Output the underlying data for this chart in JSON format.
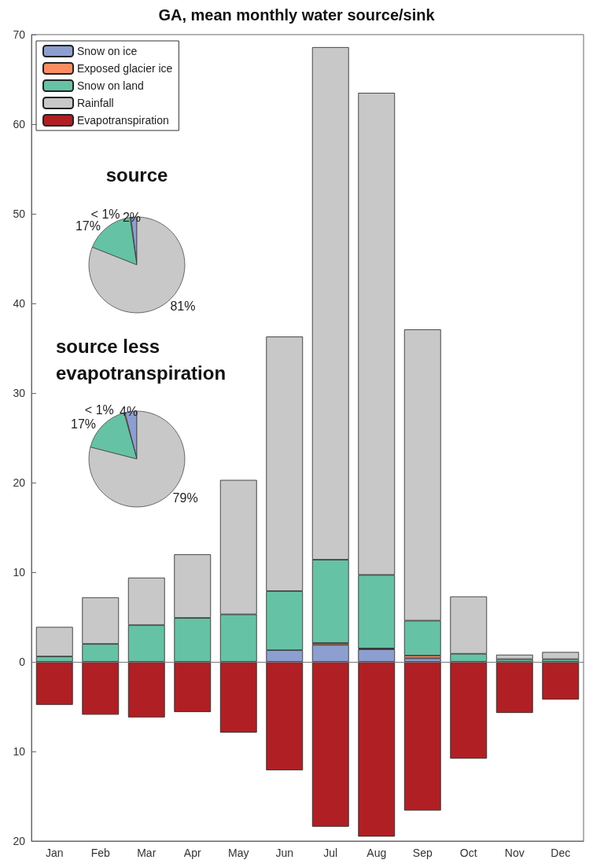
{
  "chart_data": [
    {
      "type": "bar",
      "title": "GA, mean monthly water source/sink",
      "stacked": true,
      "legend": "top left",
      "grid": false,
      "categories": [
        "Jan",
        "Feb",
        "Mar",
        "Apr",
        "May",
        "Jun",
        "Jul",
        "Aug",
        "Sep",
        "Oct",
        "Nov",
        "Dec"
      ],
      "ref_lines": [
        {
          "axis": "y",
          "value": 0,
          "color": "#777777"
        }
      ],
      "ylim": [
        -20,
        70
      ],
      "yticks": [
        {
          "value": -20,
          "label": "20"
        },
        {
          "value": -10,
          "label": "10"
        },
        0,
        10,
        20,
        30,
        40,
        50,
        60,
        70
      ],
      "series": [
        {
          "name": "Snow on ice",
          "color": "#8d9fd0",
          "values": [
            null,
            null,
            null,
            null,
            null,
            1.3,
            1.9,
            1.4,
            0.4,
            null,
            null,
            null
          ]
        },
        {
          "name": "Exposed glacier ice",
          "color": "#fc8d62",
          "values": [
            null,
            null,
            null,
            null,
            null,
            null,
            0.2,
            0.1,
            0.3,
            null,
            null,
            null
          ]
        },
        {
          "name": "Snow on land",
          "color": "#66c2a5",
          "values": [
            0.6,
            2.0,
            4.1,
            4.9,
            5.3,
            6.6,
            9.3,
            8.2,
            3.9,
            0.9,
            0.3,
            0.3
          ]
        },
        {
          "name": "Rainfall",
          "color": "#c8c8c8",
          "values": [
            3.3,
            5.2,
            5.3,
            7.1,
            15.0,
            28.4,
            57.2,
            53.8,
            32.5,
            6.4,
            0.5,
            0.8
          ]
        },
        {
          "name": "Evapotranspiration",
          "color": "#b01f24",
          "values": [
            -4.8,
            -5.9,
            -6.2,
            -5.6,
            -7.9,
            -12.1,
            -18.4,
            -19.5,
            -16.6,
            -10.8,
            -5.7,
            -4.2
          ]
        }
      ]
    },
    {
      "type": "pie",
      "title": "source",
      "categories": [
        null,
        null,
        null,
        null
      ],
      "values": [
        2,
        0.3,
        16.7,
        81
      ],
      "value_labels": [
        "2%",
        "< 1%",
        "17%",
        "81%"
      ],
      "colors": [
        "#8d9fd0",
        "#fc8d62",
        "#66c2a5",
        "#c8c8c8"
      ]
    },
    {
      "type": "pie",
      "title": "source less evapotranspiration",
      "categories": [
        null,
        null,
        null,
        null
      ],
      "values": [
        4,
        0.3,
        16.7,
        79
      ],
      "value_labels": [
        "4%",
        "< 1%",
        "17%",
        "79%"
      ],
      "colors": [
        "#8d9fd0",
        "#fc8d62",
        "#66c2a5",
        "#c8c8c8"
      ]
    }
  ]
}
